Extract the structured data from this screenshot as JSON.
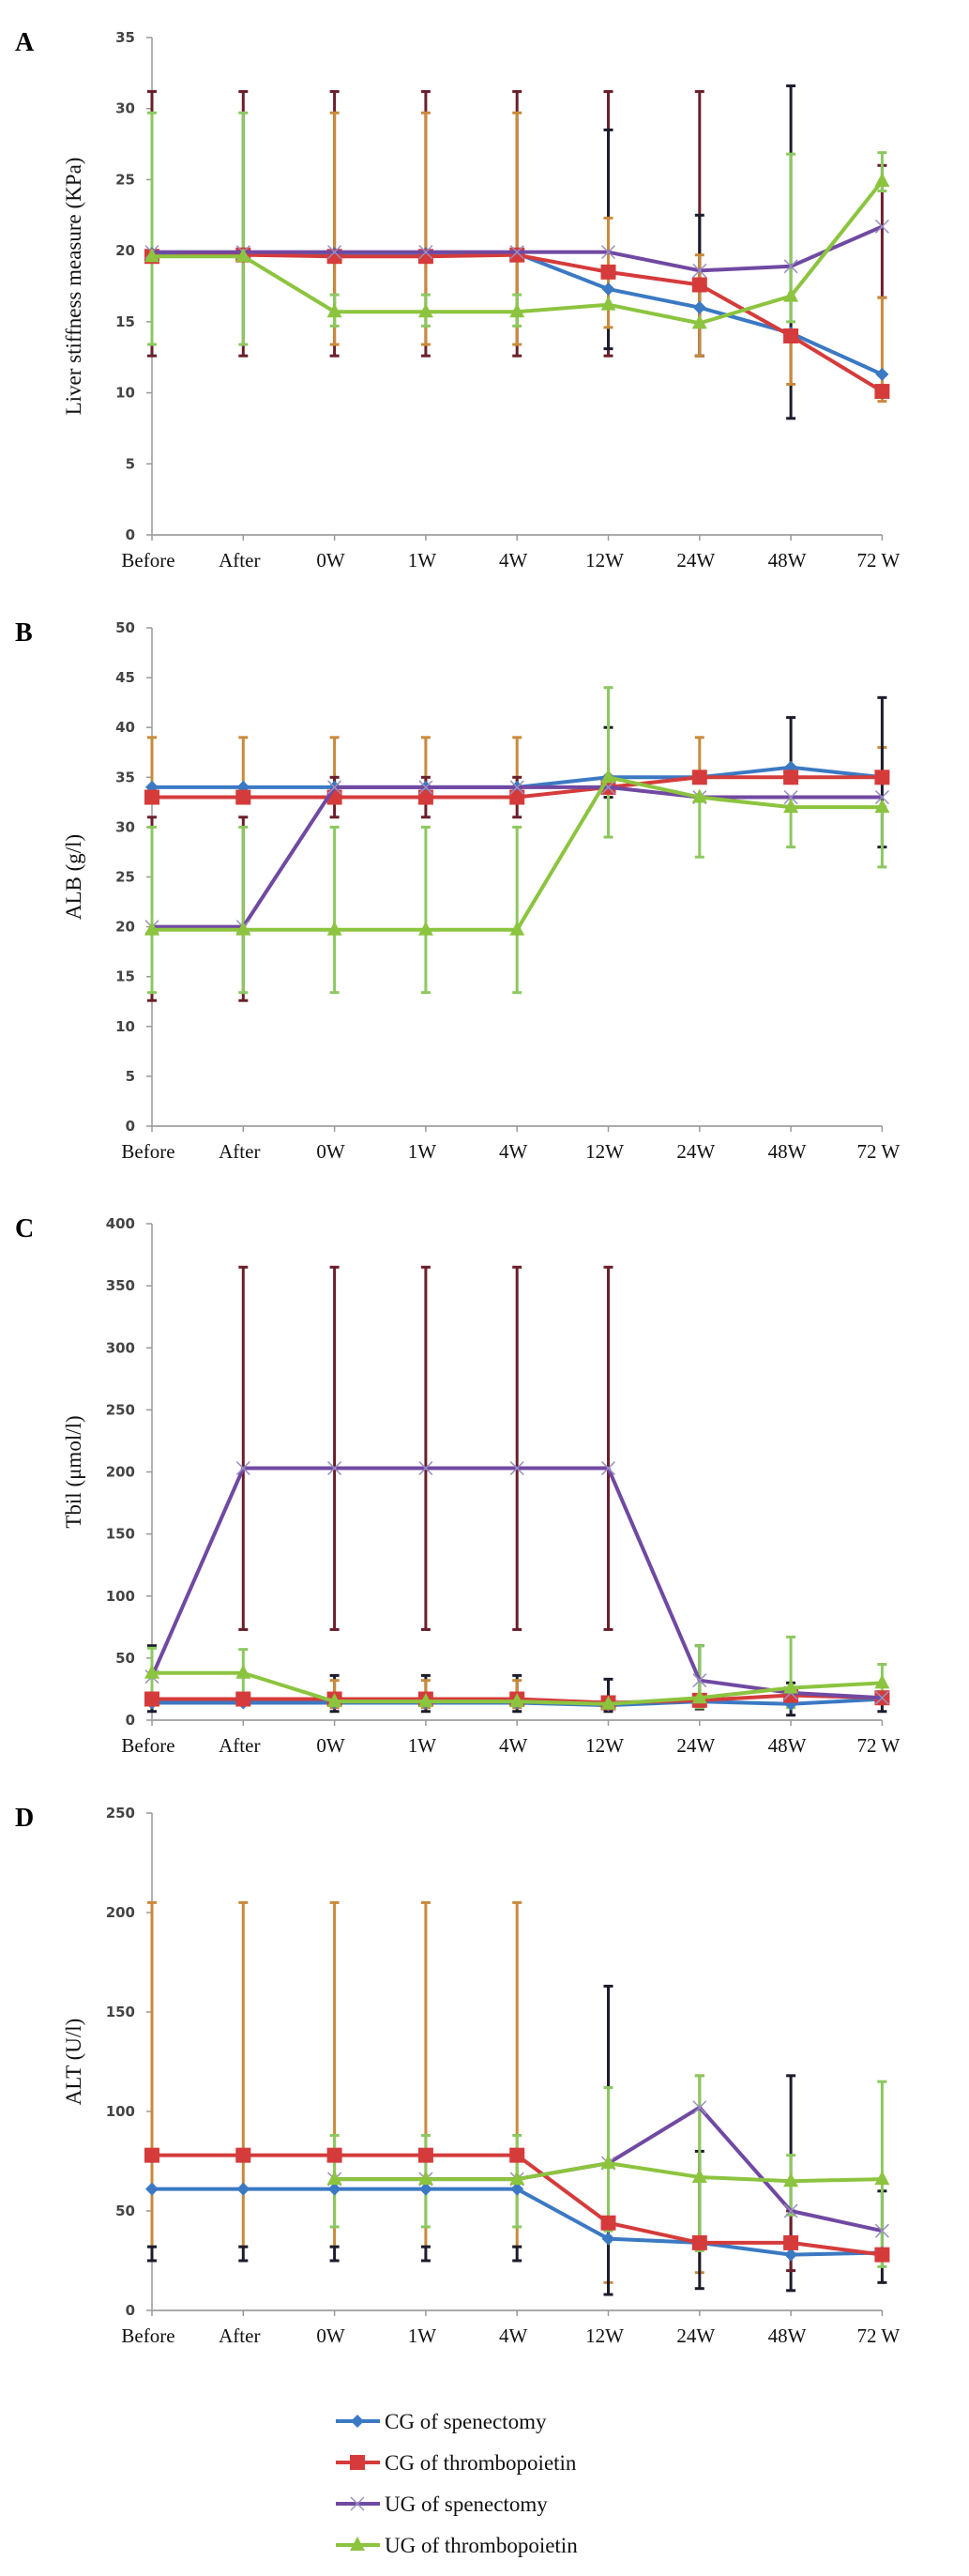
{
  "chart_data": {
    "type": "line",
    "categories": [
      "Before",
      "After",
      "0W",
      "1W",
      "4W",
      "12W",
      "24W",
      "48W",
      "72 W"
    ],
    "legend": {
      "placement": "bottom",
      "entries": [
        "CG of spenectomy",
        "CG of thrombopoietin",
        "UG of spenectomy",
        "UG of thrombopoietin"
      ]
    },
    "series_style": [
      {
        "color": "#3b79c3",
        "marker": "diamond",
        "error_color": "#1c1c2c"
      },
      {
        "color": "#d53b3b",
        "marker": "square",
        "error_color": "#c98a3c"
      },
      {
        "color": "#7049a2",
        "marker": "x",
        "error_color": "#6a1f2b"
      },
      {
        "color": "#8cc43f",
        "marker": "triangle",
        "error_color": "#8cc860"
      }
    ],
    "panels": [
      {
        "label": "A",
        "ylabel": "Liver stiffness measure (KPa)",
        "ylim": [
          0,
          35
        ],
        "ystep": 5,
        "series": [
          {
            "name": "CG of spenectomy",
            "values": [
              19.8,
              19.8,
              19.8,
              19.8,
              19.8,
              17.3,
              16.0,
              14.2,
              11.3
            ]
          },
          {
            "name": "CG of thrombopoietin",
            "values": [
              19.6,
              19.7,
              19.6,
              19.6,
              19.7,
              18.5,
              17.6,
              14.0,
              10.1
            ]
          },
          {
            "name": "UG of spenectomy",
            "values": [
              19.9,
              19.9,
              19.9,
              19.9,
              19.9,
              19.9,
              18.6,
              18.9,
              21.7
            ]
          },
          {
            "name": "UG of thrombopoietin",
            "values": [
              19.6,
              19.6,
              15.7,
              15.7,
              15.7,
              16.2,
              14.9,
              16.8,
              24.9
            ]
          }
        ],
        "error_bars": [
          [
            2,
            0,
            12.6,
            31.2
          ],
          [
            2,
            1,
            12.6,
            31.2
          ],
          [
            2,
            2,
            12.6,
            31.2
          ],
          [
            2,
            3,
            12.6,
            31.2
          ],
          [
            2,
            4,
            12.6,
            31.2
          ],
          [
            2,
            5,
            12.6,
            31.2
          ],
          [
            2,
            6,
            12.6,
            31.2
          ],
          [
            2,
            8,
            16.7,
            26.0
          ],
          [
            0,
            5,
            13.1,
            28.5
          ],
          [
            0,
            6,
            12.6,
            22.5
          ],
          [
            0,
            7,
            8.2,
            31.6
          ],
          [
            1,
            2,
            13.4,
            29.7
          ],
          [
            1,
            3,
            13.4,
            29.7
          ],
          [
            1,
            4,
            13.4,
            29.7
          ],
          [
            1,
            5,
            14.6,
            22.3
          ],
          [
            1,
            6,
            12.6,
            19.7
          ],
          [
            1,
            7,
            10.6,
            14.0
          ],
          [
            1,
            8,
            9.4,
            16.7
          ],
          [
            3,
            0,
            13.4,
            29.7
          ],
          [
            3,
            1,
            13.4,
            29.7
          ],
          [
            3,
            2,
            14.7,
            16.9
          ],
          [
            3,
            3,
            14.7,
            16.9
          ],
          [
            3,
            4,
            14.7,
            16.9
          ],
          [
            3,
            7,
            15.0,
            26.8
          ],
          [
            3,
            8,
            24.2,
            26.9
          ]
        ]
      },
      {
        "label": "B",
        "ylabel": "ALB (g/l)",
        "ylim": [
          0,
          50
        ],
        "ystep": 5,
        "series": [
          {
            "name": "CG of spenectomy",
            "values": [
              34,
              34,
              34,
              34,
              34,
              35,
              35,
              36,
              35
            ]
          },
          {
            "name": "CG of thrombopoietin",
            "values": [
              33,
              33,
              33,
              33,
              33,
              34,
              35,
              35,
              35
            ]
          },
          {
            "name": "UG of spenectomy",
            "values": [
              20,
              20,
              34,
              34,
              34,
              34,
              33,
              33,
              33
            ]
          },
          {
            "name": "UG of thrombopoietin",
            "values": [
              19.7,
              19.7,
              19.7,
              19.7,
              19.7,
              35,
              33,
              32,
              32
            ]
          }
        ],
        "error_bars": [
          [
            1,
            0,
            33,
            39
          ],
          [
            1,
            1,
            33,
            39
          ],
          [
            1,
            2,
            33,
            39
          ],
          [
            1,
            3,
            33,
            39
          ],
          [
            1,
            4,
            33,
            39
          ],
          [
            1,
            6,
            35,
            39
          ],
          [
            1,
            8,
            35,
            38
          ],
          [
            2,
            0,
            12.6,
            31
          ],
          [
            2,
            1,
            12.6,
            31
          ],
          [
            2,
            2,
            31,
            35
          ],
          [
            2,
            3,
            31,
            35
          ],
          [
            2,
            4,
            31,
            35
          ],
          [
            0,
            5,
            33,
            40
          ],
          [
            0,
            7,
            36,
            41
          ],
          [
            0,
            8,
            28,
            43
          ],
          [
            3,
            0,
            13.4,
            30
          ],
          [
            3,
            1,
            13.4,
            30
          ],
          [
            3,
            2,
            13.4,
            30
          ],
          [
            3,
            3,
            13.4,
            30
          ],
          [
            3,
            4,
            13.4,
            30
          ],
          [
            3,
            5,
            29,
            44
          ],
          [
            3,
            6,
            27,
            33
          ],
          [
            3,
            7,
            28,
            33
          ],
          [
            3,
            8,
            26,
            32
          ]
        ]
      },
      {
        "label": "C",
        "ylabel": "Tbil (μmol/l)",
        "ylim": [
          0,
          400
        ],
        "ystep": 50,
        "series": [
          {
            "name": "CG of spenectomy",
            "values": [
              14,
              14,
              14,
              14,
              14,
              12,
              15,
              13,
              17
            ]
          },
          {
            "name": "CG of thrombopoietin",
            "values": [
              17,
              17,
              17,
              17,
              17,
              14,
              16,
              20,
              18
            ]
          },
          {
            "name": "UG of spenectomy",
            "values": [
              35,
              203,
              203,
              203,
              203,
              203,
              32,
              22,
              18
            ]
          },
          {
            "name": "UG of thrombopoietin",
            "values": [
              38,
              38,
              15,
              15,
              15,
              13,
              18,
              26,
              30
            ]
          }
        ],
        "error_bars": [
          [
            2,
            1,
            73,
            365
          ],
          [
            2,
            2,
            73,
            365
          ],
          [
            2,
            3,
            73,
            365
          ],
          [
            2,
            4,
            73,
            365
          ],
          [
            2,
            5,
            73,
            365
          ],
          [
            0,
            0,
            7,
            60
          ],
          [
            0,
            2,
            7,
            36
          ],
          [
            0,
            3,
            7,
            36
          ],
          [
            0,
            4,
            7,
            36
          ],
          [
            0,
            5,
            7,
            33
          ],
          [
            0,
            6,
            9,
            60
          ],
          [
            0,
            7,
            4,
            30
          ],
          [
            0,
            8,
            7,
            22
          ],
          [
            1,
            2,
            10,
            32
          ],
          [
            1,
            3,
            10,
            32
          ],
          [
            1,
            4,
            10,
            32
          ],
          [
            3,
            0,
            20,
            58
          ],
          [
            3,
            1,
            20,
            57
          ],
          [
            3,
            6,
            10,
            60
          ],
          [
            3,
            7,
            10,
            67
          ],
          [
            3,
            8,
            18,
            45
          ]
        ]
      },
      {
        "label": "D",
        "ylabel": "ALT (U/l)",
        "ylim": [
          0,
          250
        ],
        "ystep": 50,
        "series": [
          {
            "name": "CG of spenectomy",
            "values": [
              61,
              61,
              61,
              61,
              61,
              36,
              34,
              28,
              29
            ]
          },
          {
            "name": "CG of thrombopoietin",
            "values": [
              78,
              78,
              78,
              78,
              78,
              44,
              34,
              34,
              28
            ]
          },
          {
            "name": "UG of spenectomy",
            "values": [
              null,
              null,
              66,
              66,
              66,
              74,
              102,
              50,
              40
            ]
          },
          {
            "name": "UG of thrombopoietin",
            "values": [
              null,
              null,
              66,
              66,
              66,
              74,
              67,
              65,
              66
            ]
          }
        ],
        "error_bars": [
          [
            1,
            0,
            32,
            205
          ],
          [
            1,
            1,
            32,
            205
          ],
          [
            1,
            2,
            32,
            205
          ],
          [
            1,
            3,
            32,
            205
          ],
          [
            1,
            4,
            32,
            205
          ],
          [
            1,
            5,
            14,
            44
          ],
          [
            1,
            6,
            19,
            118
          ],
          [
            0,
            0,
            25,
            32
          ],
          [
            0,
            1,
            25,
            32
          ],
          [
            0,
            2,
            25,
            32
          ],
          [
            0,
            3,
            25,
            32
          ],
          [
            0,
            4,
            25,
            32
          ],
          [
            0,
            5,
            8,
            163
          ],
          [
            0,
            6,
            11,
            80
          ],
          [
            0,
            7,
            10,
            118
          ],
          [
            0,
            8,
            14,
            60
          ],
          [
            2,
            7,
            20,
            50
          ],
          [
            3,
            2,
            42,
            88
          ],
          [
            3,
            3,
            42,
            88
          ],
          [
            3,
            4,
            42,
            88
          ],
          [
            3,
            5,
            40,
            112
          ],
          [
            3,
            6,
            30,
            118
          ],
          [
            3,
            7,
            48,
            78
          ],
          [
            3,
            8,
            22,
            115
          ]
        ]
      }
    ]
  }
}
